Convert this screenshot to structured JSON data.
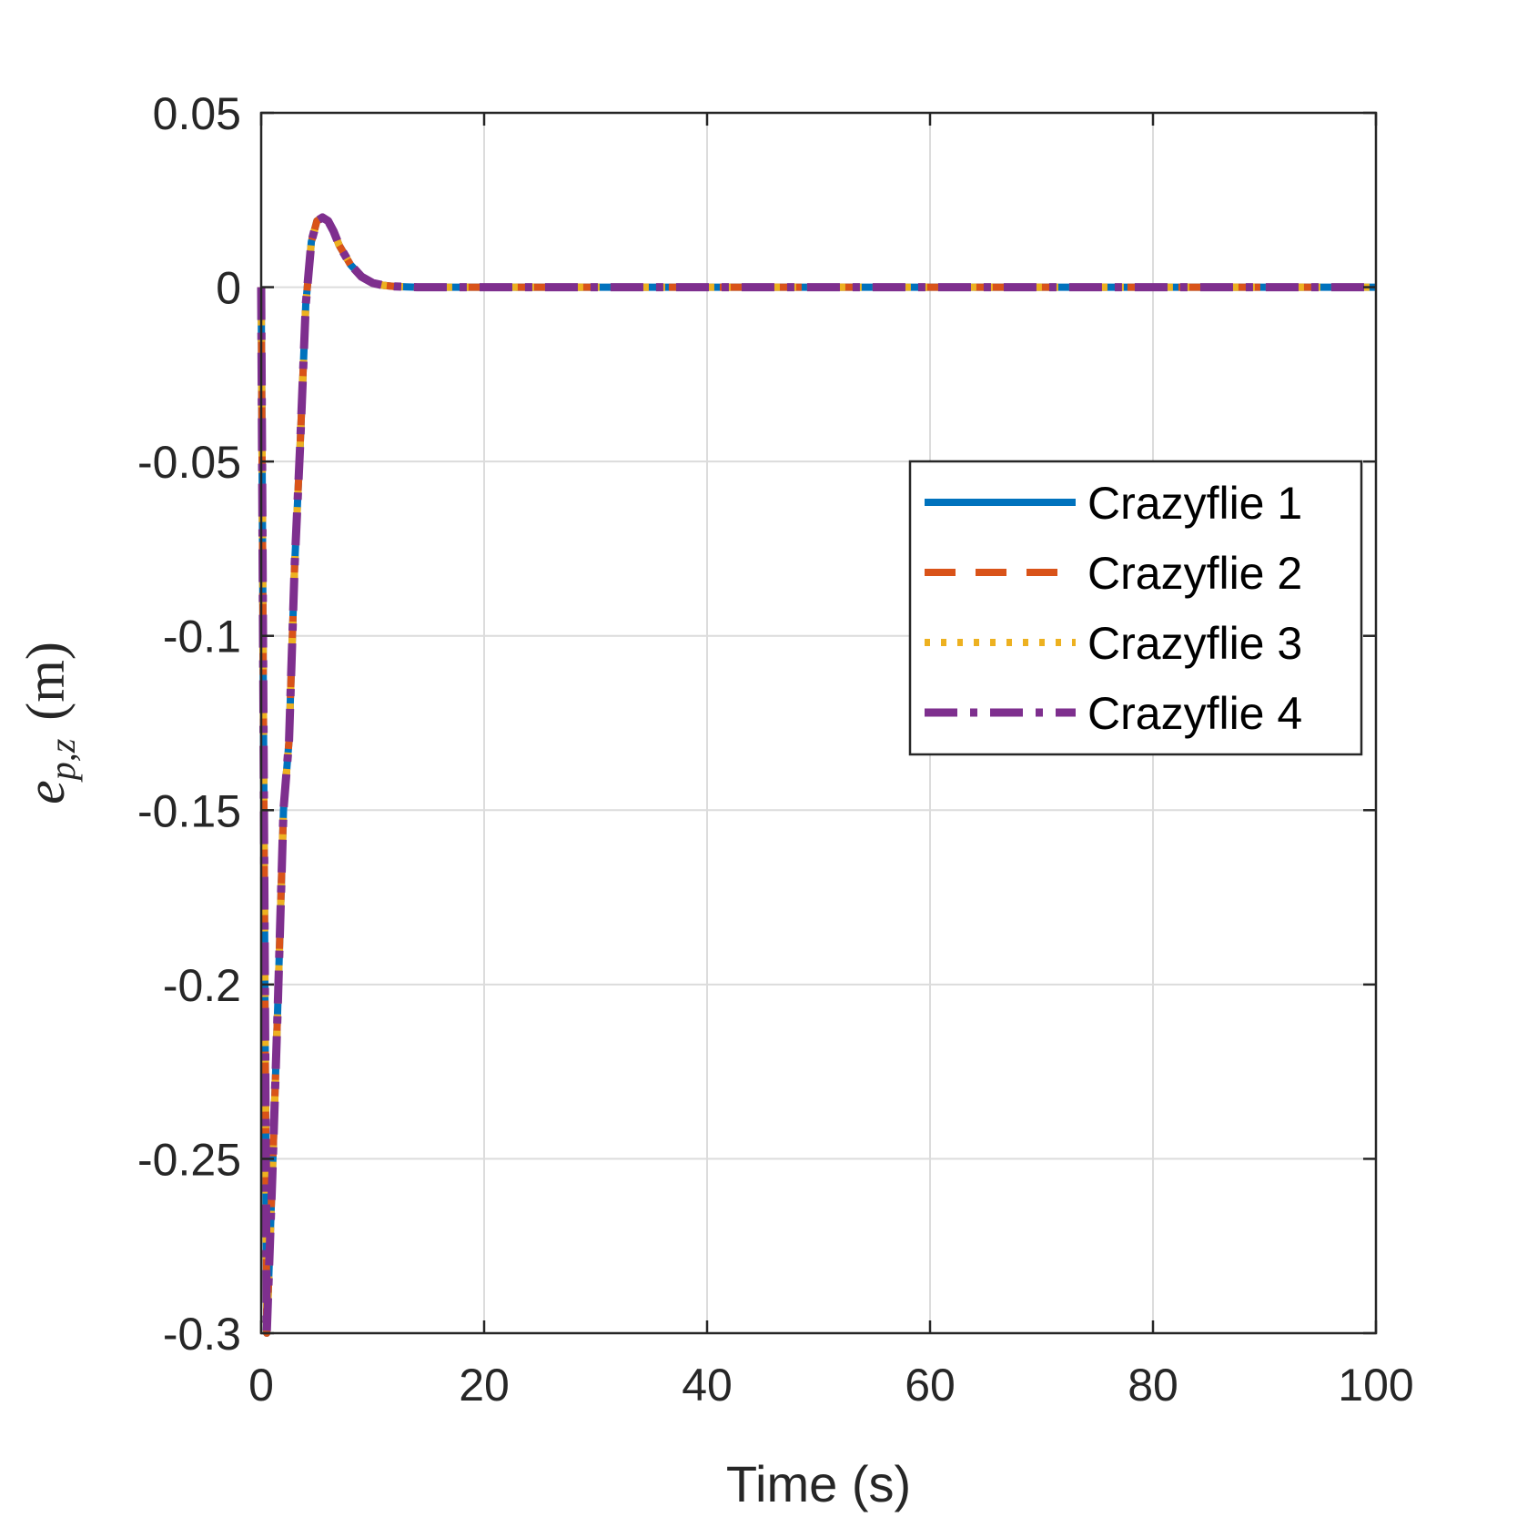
{
  "chart_data": {
    "type": "line",
    "xlabel": "Time (s)",
    "ylabel": {
      "main": "e",
      "sub": "p,z",
      "unit": "(m)"
    },
    "xlim": [
      0,
      100
    ],
    "ylim": [
      -0.3,
      0.05
    ],
    "xticks": [
      0,
      20,
      40,
      60,
      80,
      100
    ],
    "xtick_labels": [
      "0",
      "20",
      "40",
      "60",
      "80",
      "100"
    ],
    "yticks": [
      0.05,
      0,
      -0.05,
      -0.1,
      -0.15,
      -0.2,
      -0.25,
      -0.3
    ],
    "ytick_labels": [
      "0.05",
      "0",
      "-0.05",
      "-0.1",
      "-0.15",
      "-0.2",
      "-0.25",
      "-0.3"
    ],
    "grid": true,
    "legend_position": "right",
    "x": [
      0,
      0.5,
      1,
      1.5,
      2,
      2.5,
      3,
      3.5,
      4,
      4.5,
      5,
      5.5,
      6,
      6.5,
      7,
      8,
      9,
      10,
      11,
      12,
      13,
      14,
      16,
      20,
      30,
      40,
      60,
      80,
      100
    ],
    "series": [
      {
        "name": "Crazyflie 1",
        "color": "#0072BD",
        "style": "solid",
        "values": [
          0,
          -0.3,
          -0.255,
          -0.205,
          -0.15,
          -0.13,
          -0.08,
          -0.045,
          -0.005,
          0.013,
          0.019,
          0.02,
          0.019,
          0.016,
          0.012,
          0.0065,
          0.003,
          0.0012,
          0.0005,
          0.0002,
          0.0001,
          0,
          0,
          0,
          0,
          0,
          0,
          0,
          0
        ]
      },
      {
        "name": "Crazyflie 2",
        "color": "#D95319",
        "style": "dashed",
        "values": [
          0,
          -0.3,
          -0.255,
          -0.205,
          -0.15,
          -0.13,
          -0.08,
          -0.045,
          -0.005,
          0.013,
          0.019,
          0.02,
          0.019,
          0.016,
          0.012,
          0.0065,
          0.003,
          0.0012,
          0.0005,
          0.0002,
          0.0001,
          0,
          0,
          0,
          0,
          0,
          0,
          0,
          0
        ]
      },
      {
        "name": "Crazyflie 3",
        "color": "#EDB120",
        "style": "dotted",
        "values": [
          0,
          -0.3,
          -0.255,
          -0.205,
          -0.15,
          -0.13,
          -0.08,
          -0.045,
          -0.005,
          0.013,
          0.019,
          0.02,
          0.019,
          0.016,
          0.012,
          0.0065,
          0.003,
          0.0012,
          0.0005,
          0.0002,
          0.0001,
          0,
          0,
          0,
          0,
          0,
          0,
          0,
          0
        ]
      },
      {
        "name": "Crazyflie 4",
        "color": "#7E2F8E",
        "style": "dashdot",
        "values": [
          0,
          -0.3,
          -0.255,
          -0.205,
          -0.15,
          -0.13,
          -0.08,
          -0.045,
          -0.005,
          0.013,
          0.019,
          0.02,
          0.019,
          0.016,
          0.012,
          0.0065,
          0.003,
          0.0012,
          0.0005,
          0.0002,
          0.0001,
          0,
          0,
          0,
          0,
          0,
          0,
          0,
          0
        ]
      }
    ]
  }
}
